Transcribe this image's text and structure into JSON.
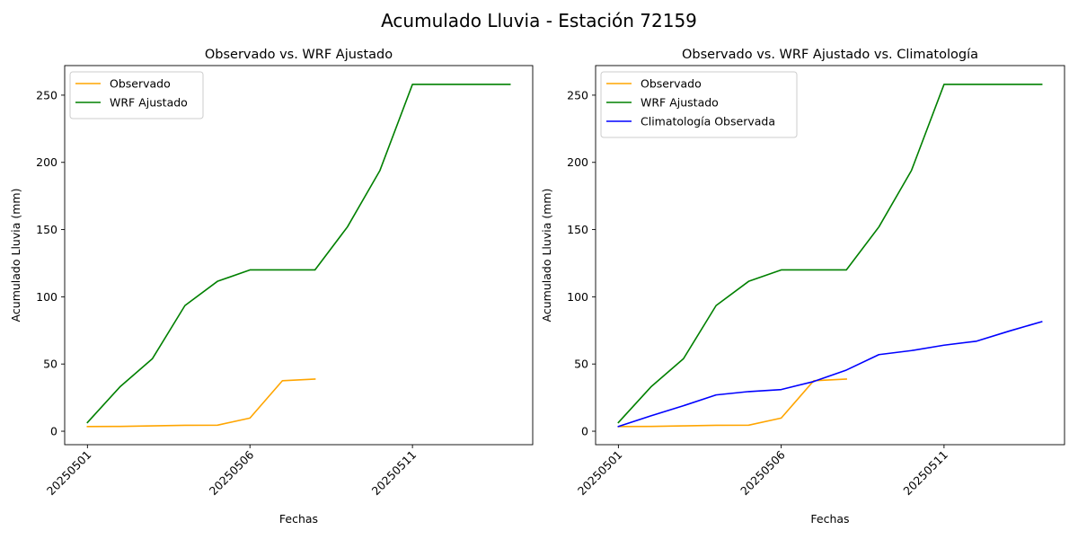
{
  "figure": {
    "title": "Acumulado Lluvia - Estación 72159"
  },
  "chart_data": [
    {
      "type": "line",
      "title": "Observado vs. WRF Ajustado",
      "xlabel": "Fechas",
      "ylabel": "Acumulado Lluvia (mm)",
      "x": [
        "20250501",
        "20250502",
        "20250503",
        "20250504",
        "20250505",
        "20250506",
        "20250507",
        "20250508",
        "20250509",
        "20250510",
        "20250511",
        "20250512",
        "20250513",
        "20250514"
      ],
      "x_ticks": [
        "20250501",
        "20250506",
        "20250511"
      ],
      "xlim_index": [
        -0.7,
        13.7
      ],
      "ylim": [
        -10,
        272
      ],
      "y_ticks": [
        0,
        50,
        100,
        150,
        200,
        250
      ],
      "legend": "top-left",
      "grid": false,
      "series": [
        {
          "name": "Observado",
          "color": "#ffa500",
          "values": [
            3.5,
            3.6,
            4.0,
            4.4,
            4.5,
            9.8,
            37.6,
            38.8,
            null,
            null,
            null,
            null,
            null,
            null
          ]
        },
        {
          "name": "WRF Ajustado",
          "color": "#008000",
          "values": [
            6.5,
            33.0,
            54.0,
            93.5,
            111.5,
            120.0,
            120.0,
            120.0,
            152.0,
            194.0,
            258.0,
            258.0,
            258.0,
            258.0
          ]
        }
      ]
    },
    {
      "type": "line",
      "title": "Observado vs. WRF Ajustado vs. Climatología",
      "xlabel": "Fechas",
      "ylabel": "Acumulado Lluvia (mm)",
      "x": [
        "20250501",
        "20250502",
        "20250503",
        "20250504",
        "20250505",
        "20250506",
        "20250507",
        "20250508",
        "20250509",
        "20250510",
        "20250511",
        "20250512",
        "20250513",
        "20250514"
      ],
      "x_ticks": [
        "20250501",
        "20250506",
        "20250511"
      ],
      "xlim_index": [
        -0.7,
        13.7
      ],
      "ylim": [
        -10,
        272
      ],
      "y_ticks": [
        0,
        50,
        100,
        150,
        200,
        250
      ],
      "legend": "top-left",
      "grid": false,
      "series": [
        {
          "name": "Observado",
          "color": "#ffa500",
          "values": [
            3.5,
            3.6,
            4.0,
            4.4,
            4.5,
            9.8,
            37.6,
            38.8,
            null,
            null,
            null,
            null,
            null,
            null
          ]
        },
        {
          "name": "WRF Ajustado",
          "color": "#008000",
          "values": [
            6.5,
            33.0,
            54.0,
            93.5,
            111.5,
            120.0,
            120.0,
            120.0,
            152.0,
            194.0,
            258.0,
            258.0,
            258.0,
            258.0
          ]
        },
        {
          "name": "Climatología Observada",
          "color": "#0000ff",
          "values": [
            3.5,
            11.5,
            19.0,
            27.0,
            29.5,
            31.0,
            37.0,
            45.5,
            57.0,
            60.0,
            64.0,
            67.0,
            74.5,
            81.5
          ]
        }
      ]
    }
  ]
}
